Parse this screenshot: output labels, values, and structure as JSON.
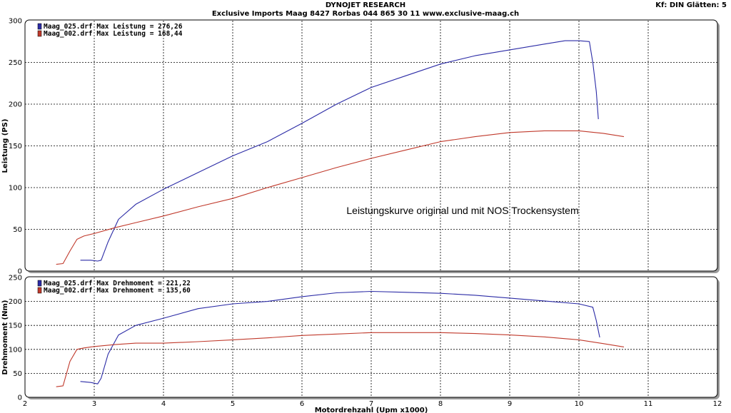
{
  "header": {
    "title": "DYNOJET RESEARCH",
    "subtitle": "Exclusive Imports Maag   8427 Rorbas   044 865 30 11   www.exclusive-maag.ch",
    "settings": "Kf: DIN  Glätten: 5"
  },
  "colors": {
    "blue": "#2b2ba6",
    "red": "#c0392b",
    "grid": "#000000"
  },
  "chart_data": [
    {
      "type": "line",
      "ylabel": "Leistung (PS)",
      "xlim": [
        2,
        12
      ],
      "ylim": [
        0,
        300
      ],
      "yticks": [
        0,
        50,
        100,
        150,
        200,
        250,
        300
      ],
      "annotation": "Leistungskurve original und mit NOS Trockensystem",
      "legend": [
        {
          "label": "Maag_025.drf Max Leistung = 276,26",
          "color": "#2b2ba6"
        },
        {
          "label": "Maag_002.drf Max Leistung = 168,44",
          "color": "#c0392b"
        }
      ],
      "series": [
        {
          "name": "Maag_025.drf",
          "color": "#2b2ba6",
          "x": [
            2.8,
            2.95,
            3.05,
            3.1,
            3.2,
            3.35,
            3.6,
            4.0,
            4.5,
            5.0,
            5.5,
            6.0,
            6.5,
            7.0,
            7.5,
            8.0,
            8.5,
            9.0,
            9.5,
            9.8,
            10.0,
            10.15,
            10.2,
            10.25,
            10.28
          ],
          "y": [
            13,
            13,
            12,
            13,
            35,
            62,
            80,
            98,
            118,
            138,
            155,
            177,
            200,
            220,
            234,
            248,
            258,
            265,
            272,
            276,
            276,
            275,
            250,
            215,
            182
          ]
        },
        {
          "name": "Maag_002.drf",
          "color": "#c0392b",
          "x": [
            2.45,
            2.55,
            2.65,
            2.75,
            2.85,
            3.0,
            3.3,
            3.6,
            4.0,
            4.5,
            5.0,
            5.5,
            6.0,
            6.5,
            7.0,
            7.5,
            8.0,
            8.5,
            9.0,
            9.5,
            10.0,
            10.35,
            10.65
          ],
          "y": [
            8,
            9,
            24,
            38,
            42,
            45,
            52,
            58,
            66,
            77,
            87,
            100,
            112,
            124,
            135,
            145,
            155,
            161,
            166,
            168,
            168,
            165,
            161
          ]
        }
      ]
    },
    {
      "type": "line",
      "ylabel": "Drehmoment (Nm)",
      "xlabel": "Motordrehzahl (Upm x1000)",
      "xlim": [
        2,
        12
      ],
      "ylim": [
        0,
        250
      ],
      "xticks": [
        2,
        3,
        4,
        5,
        6,
        7,
        8,
        9,
        10,
        11,
        12
      ],
      "yticks": [
        0,
        50,
        100,
        150,
        200,
        250
      ],
      "legend": [
        {
          "label": "Maag_025.drf Max Drehmoment = 221,22",
          "color": "#2b2ba6"
        },
        {
          "label": "Maag_002.drf Max Drehmoment = 135,60",
          "color": "#c0392b"
        }
      ],
      "series": [
        {
          "name": "Maag_025.drf",
          "color": "#2b2ba6",
          "x": [
            2.8,
            2.95,
            3.05,
            3.1,
            3.2,
            3.35,
            3.6,
            4.0,
            4.5,
            5.0,
            5.5,
            6.0,
            6.5,
            7.0,
            7.5,
            8.0,
            8.5,
            9.0,
            9.5,
            10.0,
            10.2,
            10.25,
            10.3
          ],
          "y": [
            33,
            31,
            28,
            40,
            90,
            130,
            150,
            165,
            185,
            195,
            200,
            210,
            218,
            221,
            219,
            217,
            213,
            207,
            201,
            195,
            188,
            160,
            125
          ]
        },
        {
          "name": "Maag_002.drf",
          "color": "#c0392b",
          "x": [
            2.45,
            2.55,
            2.65,
            2.75,
            2.85,
            3.0,
            3.3,
            3.6,
            4.0,
            4.5,
            5.0,
            5.5,
            6.0,
            6.5,
            7.0,
            7.5,
            8.0,
            8.5,
            9.0,
            9.5,
            10.0,
            10.35,
            10.65
          ],
          "y": [
            22,
            24,
            75,
            100,
            103,
            106,
            110,
            113,
            113,
            116,
            120,
            124,
            129,
            132,
            135,
            135,
            135,
            133,
            130,
            126,
            120,
            112,
            105
          ]
        }
      ]
    }
  ]
}
